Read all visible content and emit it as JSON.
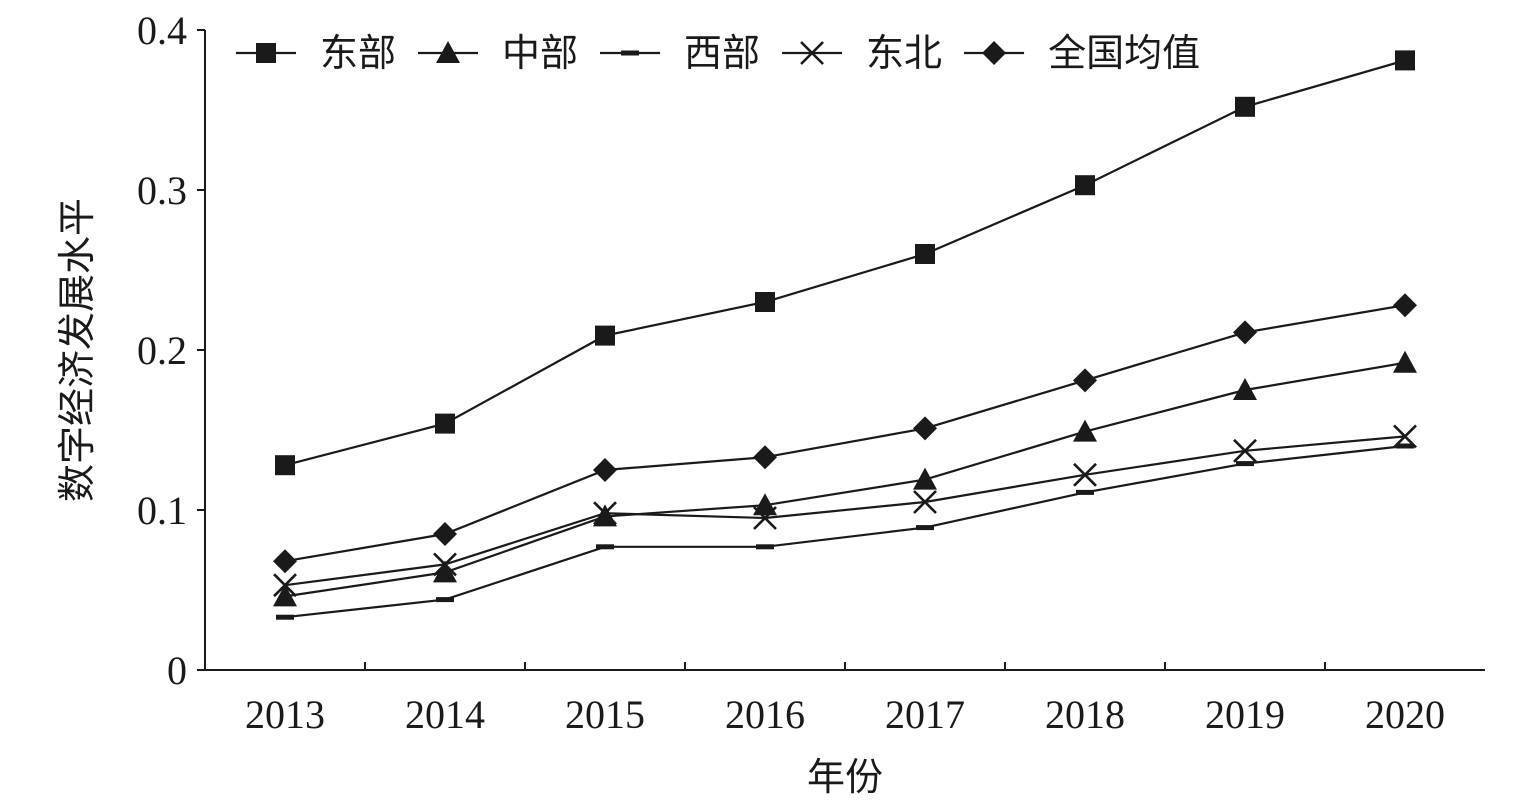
{
  "chart_data": {
    "type": "line",
    "title": "",
    "xlabel": "年份",
    "ylabel": "数字经济发展水平",
    "categories": [
      "2013",
      "2014",
      "2015",
      "2016",
      "2017",
      "2018",
      "2019",
      "2020"
    ],
    "ylim": [
      0,
      0.4
    ],
    "yticks": [
      "0",
      "0.1",
      "0.2",
      "0.3",
      "0.4"
    ],
    "grid": false,
    "legend_position": "top",
    "series": [
      {
        "name": "东部",
        "marker": "square",
        "values": [
          0.128,
          0.154,
          0.209,
          0.23,
          0.26,
          0.303,
          0.352,
          0.381
        ]
      },
      {
        "name": "中部",
        "marker": "triangle",
        "values": [
          0.046,
          0.061,
          0.096,
          0.103,
          0.119,
          0.149,
          0.175,
          0.192
        ]
      },
      {
        "name": "西部",
        "marker": "dash",
        "values": [
          0.033,
          0.044,
          0.077,
          0.077,
          0.089,
          0.111,
          0.129,
          0.14
        ]
      },
      {
        "name": "东北",
        "marker": "x",
        "values": [
          0.053,
          0.066,
          0.098,
          0.095,
          0.105,
          0.122,
          0.137,
          0.146
        ]
      },
      {
        "name": "全国均值",
        "marker": "diamond",
        "values": [
          0.068,
          0.085,
          0.125,
          0.133,
          0.151,
          0.181,
          0.211,
          0.228
        ]
      }
    ],
    "colors": {
      "line": "#1a1a1a",
      "background": "#ffffff"
    }
  }
}
